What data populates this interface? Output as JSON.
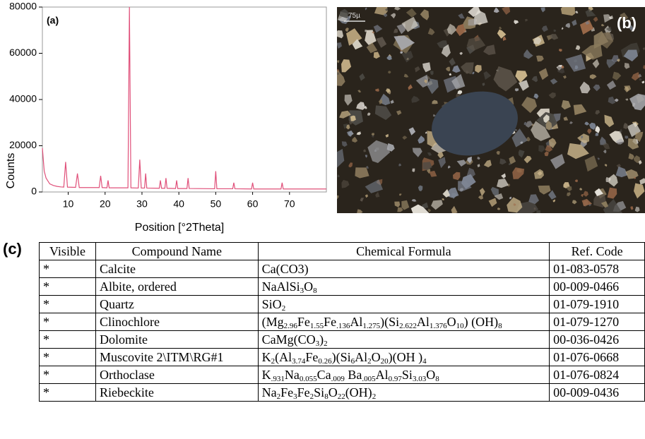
{
  "chart_data": {
    "type": "line",
    "panel_label": "(a)",
    "xlabel": "Position [°2Theta]",
    "ylabel": "Counts",
    "x": [
      3,
      3.5,
      4,
      5,
      6,
      7,
      8,
      8.8,
      9.3,
      9.8,
      12,
      12.5,
      13,
      18.4,
      18.8,
      19.2,
      20.5,
      20.8,
      21.1,
      26.2,
      26.6,
      27,
      29,
      29.4,
      29.8,
      30.7,
      31,
      31.3,
      34.7,
      35,
      35.3,
      36.2,
      36.5,
      36.8,
      39.1,
      39.4,
      39.7,
      42.2,
      42.5,
      42.8,
      49.7,
      50,
      50.3,
      54.6,
      54.9,
      55.2,
      59.7,
      60,
      60.3,
      67.7,
      68,
      68.3,
      80
    ],
    "series": [
      {
        "color": "#e0507a",
        "values": [
          19000,
          9000,
          6000,
          3500,
          2800,
          2400,
          2200,
          2100,
          13000,
          2100,
          2000,
          8000,
          1900,
          1900,
          7000,
          1900,
          1800,
          5000,
          1800,
          1800,
          80000,
          1800,
          1700,
          14000,
          1700,
          1700,
          8000,
          1700,
          1600,
          5000,
          1600,
          1600,
          6000,
          1600,
          1500,
          5000,
          1500,
          1500,
          6000,
          1500,
          1400,
          9000,
          1400,
          1400,
          4000,
          1400,
          1300,
          4000,
          1300,
          1300,
          4000,
          1300,
          1300
        ]
      }
    ],
    "xlim": [
      3,
      80
    ],
    "xticks": [
      10,
      20,
      30,
      40,
      50,
      60,
      70
    ],
    "ylim": [
      0,
      80000
    ],
    "yticks": [
      0,
      20000,
      40000,
      60000,
      80000
    ]
  },
  "micrograph": {
    "panel_label": "(b)",
    "scale_label": "75µ"
  },
  "table": {
    "panel_label": "(c)",
    "header": [
      "Visible",
      "Compound Name",
      "Chemical Formula",
      "Ref. Code"
    ],
    "rows": [
      {
        "visible": "*",
        "name": "Calcite",
        "formula": [
          "Ca(CO3)"
        ],
        "ref": "01-083-0578"
      },
      {
        "visible": "*",
        "name": "Albite, ordered",
        "formula": [
          "NaAlSi",
          {
            "sub": "3"
          },
          "O",
          {
            "sub": "8"
          }
        ],
        "ref": "00-009-0466"
      },
      {
        "visible": "*",
        "name": "Quartz",
        "formula": [
          "SiO",
          {
            "sub": "2"
          }
        ],
        "ref": "01-079-1910"
      },
      {
        "visible": "*",
        "name": "Clinochlore",
        "formula": [
          "(Mg",
          {
            "sub": "2.96"
          },
          "Fe",
          {
            "sub": "1.55"
          },
          "Fe",
          {
            "sub": ".136"
          },
          "Al",
          {
            "sub": "1.275"
          },
          ")(Si",
          {
            "sub": "2.622"
          },
          "Al",
          {
            "sub": "1.376"
          },
          "O",
          {
            "sub": "10"
          },
          ") (OH)",
          {
            "sub": "8"
          }
        ],
        "ref": "01-079-1270"
      },
      {
        "visible": "*",
        "name": "Dolomite",
        "formula": [
          "CaMg(CO",
          {
            "sub": "3"
          },
          ")",
          {
            "sub": "2"
          }
        ],
        "ref": "00-036-0426"
      },
      {
        "visible": "*",
        "name": "Muscovite 2\\ITM\\RG#1",
        "formula": [
          "K",
          {
            "sub": "2"
          },
          "(Al",
          {
            "sub": "3.74"
          },
          "Fe",
          {
            "sub": "0.26"
          },
          ")(Si",
          {
            "sub": "6"
          },
          "Al",
          {
            "sub": "2"
          },
          "O",
          {
            "sub": "20"
          },
          ")(OH )",
          {
            "sub": "4"
          }
        ],
        "ref": "01-076-0668"
      },
      {
        "visible": "*",
        "name": "Orthoclase",
        "formula": [
          "K",
          {
            "sub": ".931"
          },
          "Na",
          {
            "sub": "0.055"
          },
          "Ca",
          {
            "sub": ".009"
          },
          " Ba",
          {
            "sub": ".005"
          },
          "Al",
          {
            "sub": "0.97"
          },
          "Si",
          {
            "sub": "3.03"
          },
          "O",
          {
            "sub": "8"
          }
        ],
        "ref": "01-076-0824"
      },
      {
        "visible": "*",
        "name": "Riebeckite",
        "formula": [
          "Na",
          {
            "sub": "2"
          },
          "Fe",
          {
            "sub": "3"
          },
          "Fe",
          {
            "sub": "2"
          },
          "Si",
          {
            "sub": "8"
          },
          "O",
          {
            "sub": "22"
          },
          "(OH)",
          {
            "sub": "2"
          }
        ],
        "ref": "00-009-0436"
      }
    ]
  }
}
